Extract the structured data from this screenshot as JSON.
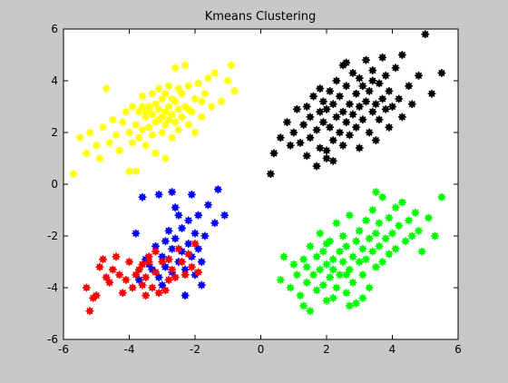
{
  "window": {
    "background": "#c8c8c8"
  },
  "chart_data": {
    "type": "scatter",
    "title": "Kmeans Clustering",
    "xlabel": "",
    "ylabel": "",
    "xlim": [
      -6,
      6
    ],
    "ylim": [
      -6,
      6
    ],
    "xticks": [
      -6,
      -4,
      -2,
      0,
      2,
      4,
      6
    ],
    "yticks": [
      -6,
      -4,
      -2,
      0,
      2,
      4,
      6
    ],
    "xtick_labels": [
      "-6",
      "-4",
      "-2",
      "0",
      "2",
      "4",
      "6"
    ],
    "ytick_labels": [
      "-6",
      "-4",
      "-2",
      "0",
      "2",
      "4",
      "6"
    ],
    "grid": false,
    "axes_background": "#ffffff",
    "marker": "star",
    "series": [
      {
        "color": "#ffff00",
        "points": [
          [
            -5.7,
            0.4
          ],
          [
            -5.5,
            1.8
          ],
          [
            -5.3,
            1.2
          ],
          [
            -5.2,
            2.0
          ],
          [
            -5.0,
            1.5
          ],
          [
            -4.9,
            1.0
          ],
          [
            -4.8,
            2.2
          ],
          [
            -4.7,
            3.7
          ],
          [
            -4.6,
            1.6
          ],
          [
            -4.5,
            2.5
          ],
          [
            -4.4,
            1.9
          ],
          [
            -4.3,
            1.3
          ],
          [
            -4.2,
            2.4
          ],
          [
            -4.1,
            2.8
          ],
          [
            -4.0,
            2.0
          ],
          [
            -4.0,
            0.5
          ],
          [
            -3.9,
            1.6
          ],
          [
            -3.9,
            3.0
          ],
          [
            -3.8,
            2.3
          ],
          [
            -3.8,
            0.5
          ],
          [
            -3.7,
            2.8
          ],
          [
            -3.7,
            1.8
          ],
          [
            -3.6,
            3.4
          ],
          [
            -3.6,
            2.1
          ],
          [
            -3.5,
            2.6
          ],
          [
            -3.5,
            1.5
          ],
          [
            -3.4,
            3.0
          ],
          [
            -3.4,
            2.2
          ],
          [
            -3.3,
            3.5
          ],
          [
            -3.3,
            2.7
          ],
          [
            -3.3,
            1.9
          ],
          [
            -3.2,
            3.1
          ],
          [
            -3.2,
            2.4
          ],
          [
            -3.2,
            1.2
          ],
          [
            -3.1,
            2.9
          ],
          [
            -3.1,
            3.7
          ],
          [
            -3.0,
            2.6
          ],
          [
            -3.0,
            2.0
          ],
          [
            -3.0,
            3.3
          ],
          [
            -2.9,
            2.8
          ],
          [
            -2.9,
            2.3
          ],
          [
            -2.9,
            1.0
          ],
          [
            -2.8,
            3.0
          ],
          [
            -2.8,
            2.5
          ],
          [
            -2.8,
            3.8
          ],
          [
            -2.7,
            2.7
          ],
          [
            -2.7,
            1.8
          ],
          [
            -2.6,
            3.2
          ],
          [
            -2.6,
            2.4
          ],
          [
            -2.6,
            4.5
          ],
          [
            -2.5,
            2.9
          ],
          [
            -2.5,
            2.1
          ],
          [
            -2.4,
            3.5
          ],
          [
            -2.4,
            2.6
          ],
          [
            -2.3,
            3.0
          ],
          [
            -2.3,
            4.6
          ],
          [
            -2.2,
            2.3
          ],
          [
            -2.2,
            3.8
          ],
          [
            -2.1,
            2.8
          ],
          [
            -2.0,
            3.3
          ],
          [
            -2.0,
            2.0
          ],
          [
            -1.9,
            3.9
          ],
          [
            -1.8,
            2.6
          ],
          [
            -1.7,
            3.5
          ],
          [
            -1.6,
            4.1
          ],
          [
            -1.5,
            3.0
          ],
          [
            -1.4,
            4.3
          ],
          [
            -1.2,
            3.2
          ],
          [
            -1.0,
            4.0
          ],
          [
            -0.9,
            4.6
          ],
          [
            -0.8,
            3.6
          ],
          [
            -3.6,
            3.0
          ],
          [
            -3.4,
            2.9
          ],
          [
            -3.1,
            2.5
          ],
          [
            -2.9,
            3.5
          ],
          [
            -2.7,
            3.3
          ],
          [
            -3.5,
            2.8
          ],
          [
            -2.5,
            3.7
          ],
          [
            -1.8,
            3.2
          ],
          [
            -2.2,
            2.9
          ]
        ]
      },
      {
        "color": "#000000",
        "points": [
          [
            0.3,
            0.4
          ],
          [
            0.4,
            1.2
          ],
          [
            0.6,
            1.8
          ],
          [
            0.8,
            2.4
          ],
          [
            0.9,
            1.5
          ],
          [
            1.0,
            2.0
          ],
          [
            1.1,
            2.9
          ],
          [
            1.2,
            1.6
          ],
          [
            1.3,
            2.3
          ],
          [
            1.4,
            3.0
          ],
          [
            1.5,
            1.8
          ],
          [
            1.5,
            2.6
          ],
          [
            1.6,
            3.4
          ],
          [
            1.7,
            2.1
          ],
          [
            1.7,
            0.7
          ],
          [
            1.8,
            2.8
          ],
          [
            1.8,
            1.4
          ],
          [
            1.9,
            3.2
          ],
          [
            1.9,
            2.4
          ],
          [
            2.0,
            1.0
          ],
          [
            2.0,
            2.9
          ],
          [
            2.1,
            3.6
          ],
          [
            2.1,
            2.2
          ],
          [
            2.2,
            1.7
          ],
          [
            2.2,
            3.1
          ],
          [
            2.3,
            2.6
          ],
          [
            2.3,
            4.0
          ],
          [
            2.4,
            2.0
          ],
          [
            2.4,
            3.4
          ],
          [
            2.5,
            2.8
          ],
          [
            2.5,
            1.5
          ],
          [
            2.6,
            3.8
          ],
          [
            2.6,
            2.4
          ],
          [
            2.7,
            3.1
          ],
          [
            2.7,
            1.9
          ],
          [
            2.8,
            2.7
          ],
          [
            2.8,
            4.3
          ],
          [
            2.9,
            3.5
          ],
          [
            2.9,
            2.2
          ],
          [
            3.0,
            3.0
          ],
          [
            3.0,
            1.4
          ],
          [
            3.1,
            3.8
          ],
          [
            3.1,
            2.5
          ],
          [
            3.2,
            4.8
          ],
          [
            3.2,
            3.2
          ],
          [
            3.3,
            2.0
          ],
          [
            3.3,
            3.6
          ],
          [
            3.4,
            2.8
          ],
          [
            3.4,
            4.4
          ],
          [
            3.5,
            3.1
          ],
          [
            3.5,
            1.7
          ],
          [
            3.6,
            3.9
          ],
          [
            3.6,
            2.5
          ],
          [
            3.7,
            3.3
          ],
          [
            3.8,
            4.2
          ],
          [
            3.8,
            2.9
          ],
          [
            3.9,
            3.6
          ],
          [
            3.9,
            2.2
          ],
          [
            4.0,
            3.0
          ],
          [
            4.1,
            4.5
          ],
          [
            4.2,
            3.3
          ],
          [
            4.3,
            2.6
          ],
          [
            4.5,
            3.8
          ],
          [
            4.6,
            3.1
          ],
          [
            4.8,
            4.2
          ],
          [
            5.0,
            5.8
          ],
          [
            5.2,
            3.5
          ],
          [
            5.5,
            4.3
          ],
          [
            4.3,
            5.0
          ],
          [
            3.7,
            4.9
          ],
          [
            2.5,
            4.6
          ],
          [
            2.6,
            4.7
          ],
          [
            3.0,
            4.1
          ],
          [
            1.8,
            3.7
          ],
          [
            2.2,
            0.9
          ],
          [
            3.4,
            4.0
          ],
          [
            2.0,
            1.3
          ],
          [
            1.4,
            1.1
          ]
        ]
      },
      {
        "color": "#0000ff",
        "points": [
          [
            -3.8,
            -1.9
          ],
          [
            -3.7,
            -3.7
          ],
          [
            -3.5,
            -2.9
          ],
          [
            -3.4,
            -3.1
          ],
          [
            -3.3,
            -3.3
          ],
          [
            -3.2,
            -2.4
          ],
          [
            -3.1,
            -3.6
          ],
          [
            -3.1,
            -0.4
          ],
          [
            -3.0,
            -2.8
          ],
          [
            -3.0,
            -3.9
          ],
          [
            -2.9,
            -2.2
          ],
          [
            -2.9,
            -3.2
          ],
          [
            -2.8,
            -2.9
          ],
          [
            -2.8,
            -1.8
          ],
          [
            -2.7,
            -3.4
          ],
          [
            -2.7,
            -2.5
          ],
          [
            -2.6,
            -2.1
          ],
          [
            -2.6,
            -0.9
          ],
          [
            -2.5,
            -3.0
          ],
          [
            -2.5,
            -1.2
          ],
          [
            -2.4,
            -2.6
          ],
          [
            -2.4,
            -1.7
          ],
          [
            -2.3,
            -4.3
          ],
          [
            -2.3,
            -3.3
          ],
          [
            -2.2,
            -2.3
          ],
          [
            -2.2,
            -1.4
          ],
          [
            -2.1,
            -2.8
          ],
          [
            -2.1,
            -0.4
          ],
          [
            -2.0,
            -1.9
          ],
          [
            -2.0,
            -3.5
          ],
          [
            -1.9,
            -1.2
          ],
          [
            -1.9,
            -2.5
          ],
          [
            -1.8,
            -3.0
          ],
          [
            -1.8,
            -3.9
          ],
          [
            -1.7,
            -2.0
          ],
          [
            -1.6,
            -0.8
          ],
          [
            -1.4,
            -1.5
          ],
          [
            -1.3,
            -0.2
          ],
          [
            -1.1,
            -1.2
          ],
          [
            -3.6,
            -0.5
          ],
          [
            -2.7,
            -0.3
          ]
        ]
      },
      {
        "color": "#ff0000",
        "points": [
          [
            -5.3,
            -4.0
          ],
          [
            -5.2,
            -4.9
          ],
          [
            -5.1,
            -4.4
          ],
          [
            -5.0,
            -4.3
          ],
          [
            -4.9,
            -3.2
          ],
          [
            -4.8,
            -2.9
          ],
          [
            -4.7,
            -3.6
          ],
          [
            -4.6,
            -3.8
          ],
          [
            -4.5,
            -3.3
          ],
          [
            -4.4,
            -2.8
          ],
          [
            -4.3,
            -3.5
          ],
          [
            -4.2,
            -4.2
          ],
          [
            -4.1,
            -3.7
          ],
          [
            -4.0,
            -3.0
          ],
          [
            -3.9,
            -4.0
          ],
          [
            -3.8,
            -3.5
          ],
          [
            -3.7,
            -3.3
          ],
          [
            -3.6,
            -3.9
          ],
          [
            -3.6,
            -3.1
          ],
          [
            -3.5,
            -4.3
          ],
          [
            -3.5,
            -3.6
          ],
          [
            -3.4,
            -3.0
          ],
          [
            -3.4,
            -2.8
          ],
          [
            -3.3,
            -4.0
          ],
          [
            -3.2,
            -3.4
          ],
          [
            -3.2,
            -2.6
          ],
          [
            -3.1,
            -4.2
          ],
          [
            -3.0,
            -3.0
          ],
          [
            -2.9,
            -4.1
          ],
          [
            -2.8,
            -2.9
          ],
          [
            -2.8,
            -3.7
          ],
          [
            -2.7,
            -3.3
          ],
          [
            -2.6,
            -3.6
          ],
          [
            -2.5,
            -2.5
          ],
          [
            -2.4,
            -3.0
          ],
          [
            -2.3,
            -3.5
          ],
          [
            -2.2,
            -2.7
          ],
          [
            -2.1,
            -3.2
          ],
          [
            -2.0,
            -2.3
          ],
          [
            -1.9,
            -3.4
          ]
        ]
      },
      {
        "color": "#00ff00",
        "points": [
          [
            0.6,
            -3.7
          ],
          [
            0.7,
            -2.8
          ],
          [
            0.9,
            -4.0
          ],
          [
            1.0,
            -3.1
          ],
          [
            1.1,
            -3.5
          ],
          [
            1.2,
            -4.3
          ],
          [
            1.3,
            -2.9
          ],
          [
            1.4,
            -3.8
          ],
          [
            1.4,
            -3.2
          ],
          [
            1.5,
            -4.9
          ],
          [
            1.5,
            -2.4
          ],
          [
            1.6,
            -3.5
          ],
          [
            1.7,
            -4.1
          ],
          [
            1.7,
            -2.8
          ],
          [
            1.8,
            -3.3
          ],
          [
            1.8,
            -1.9
          ],
          [
            1.9,
            -3.9
          ],
          [
            1.9,
            -2.6
          ],
          [
            2.0,
            -3.1
          ],
          [
            2.0,
            -4.5
          ],
          [
            2.1,
            -2.2
          ],
          [
            2.1,
            -3.6
          ],
          [
            2.2,
            -2.9
          ],
          [
            2.2,
            -3.3
          ],
          [
            2.3,
            -4.0
          ],
          [
            2.3,
            -1.5
          ],
          [
            2.4,
            -2.6
          ],
          [
            2.4,
            -3.5
          ],
          [
            2.5,
            -2.0
          ],
          [
            2.5,
            -3.0
          ],
          [
            2.6,
            -4.2
          ],
          [
            2.6,
            -2.4
          ],
          [
            2.7,
            -3.3
          ],
          [
            2.7,
            -1.2
          ],
          [
            2.8,
            -2.8
          ],
          [
            2.8,
            -3.8
          ],
          [
            2.9,
            -2.2
          ],
          [
            2.9,
            -4.6
          ],
          [
            3.0,
            -3.0
          ],
          [
            3.0,
            -1.8
          ],
          [
            3.1,
            -2.5
          ],
          [
            3.1,
            -3.5
          ],
          [
            3.2,
            -1.4
          ],
          [
            3.2,
            -2.9
          ],
          [
            3.3,
            -2.1
          ],
          [
            3.3,
            -4.0
          ],
          [
            3.4,
            -2.6
          ],
          [
            3.4,
            -1.0
          ],
          [
            3.5,
            -3.2
          ],
          [
            3.5,
            -1.9
          ],
          [
            3.6,
            -2.4
          ],
          [
            3.6,
            -1.5
          ],
          [
            3.7,
            -3.0
          ],
          [
            3.7,
            -0.5
          ],
          [
            3.8,
            -2.1
          ],
          [
            3.9,
            -1.3
          ],
          [
            3.9,
            -2.7
          ],
          [
            4.0,
            -1.9
          ],
          [
            4.1,
            -0.9
          ],
          [
            4.1,
            -2.5
          ],
          [
            4.2,
            -1.6
          ],
          [
            4.3,
            -0.7
          ],
          [
            4.4,
            -2.2
          ],
          [
            4.5,
            -1.4
          ],
          [
            4.6,
            -2.0
          ],
          [
            4.7,
            -1.1
          ],
          [
            4.8,
            -1.8
          ],
          [
            4.9,
            -2.6
          ],
          [
            5.1,
            -1.3
          ],
          [
            5.3,
            -2.0
          ],
          [
            5.5,
            -0.5
          ],
          [
            3.5,
            -0.3
          ],
          [
            2.0,
            -2.3
          ],
          [
            2.6,
            -3.5
          ],
          [
            3.1,
            -4.4
          ],
          [
            2.2,
            -4.4
          ],
          [
            2.7,
            -4.7
          ],
          [
            1.3,
            -4.7
          ]
        ]
      }
    ]
  }
}
